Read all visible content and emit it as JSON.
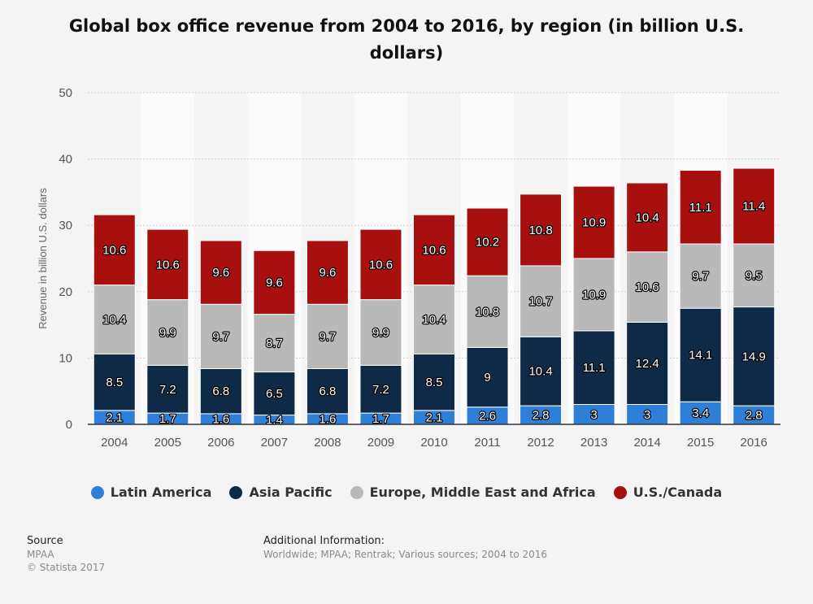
{
  "title": "Global box office revenue from 2004 to 2016, by region (in billion U.S. dollars)",
  "footer": {
    "source_label": "Source",
    "source_value": "MPAA",
    "copyright": "© Statista 2017",
    "info_label": "Additional Information:",
    "info_value": "Worldwide; MPAA; Rentrak; Various sources; 2004 to 2016"
  },
  "chart_data": {
    "type": "bar",
    "stacked": true,
    "title": "Global box office revenue from 2004 to 2016, by region (in billion U.S. dollars)",
    "xlabel": "",
    "ylabel": "Revenue in billion U.S. dollars",
    "ylim": [
      0,
      50
    ],
    "yticks": [
      0,
      10,
      20,
      30,
      40,
      50
    ],
    "grid": true,
    "legend_position": "bottom",
    "categories": [
      "2004",
      "2005",
      "2006",
      "2007",
      "2008",
      "2009",
      "2010",
      "2011",
      "2012",
      "2013",
      "2014",
      "2015",
      "2016"
    ],
    "series": [
      {
        "name": "Latin America",
        "color": "#2f7ed8",
        "values": [
          2.1,
          1.7,
          1.6,
          1.4,
          1.6,
          1.7,
          2.1,
          2.6,
          2.8,
          3,
          3,
          3.4,
          2.8
        ]
      },
      {
        "name": "Asia Pacific",
        "color": "#0e2a47",
        "values": [
          8.5,
          7.2,
          6.8,
          6.5,
          6.8,
          7.2,
          8.5,
          9,
          10.4,
          11.1,
          12.4,
          14.1,
          14.9
        ]
      },
      {
        "name": "Europe, Middle East and Africa",
        "color": "#b9b9b9",
        "values": [
          10.4,
          9.9,
          9.7,
          8.7,
          9.7,
          9.9,
          10.4,
          10.8,
          10.7,
          10.9,
          10.6,
          9.7,
          9.5
        ]
      },
      {
        "name": "U.S./Canada",
        "color": "#a80f0f",
        "values": [
          10.6,
          10.6,
          9.6,
          9.6,
          9.6,
          10.6,
          10.6,
          10.2,
          10.8,
          10.9,
          10.4,
          11.1,
          11.4
        ]
      }
    ]
  }
}
